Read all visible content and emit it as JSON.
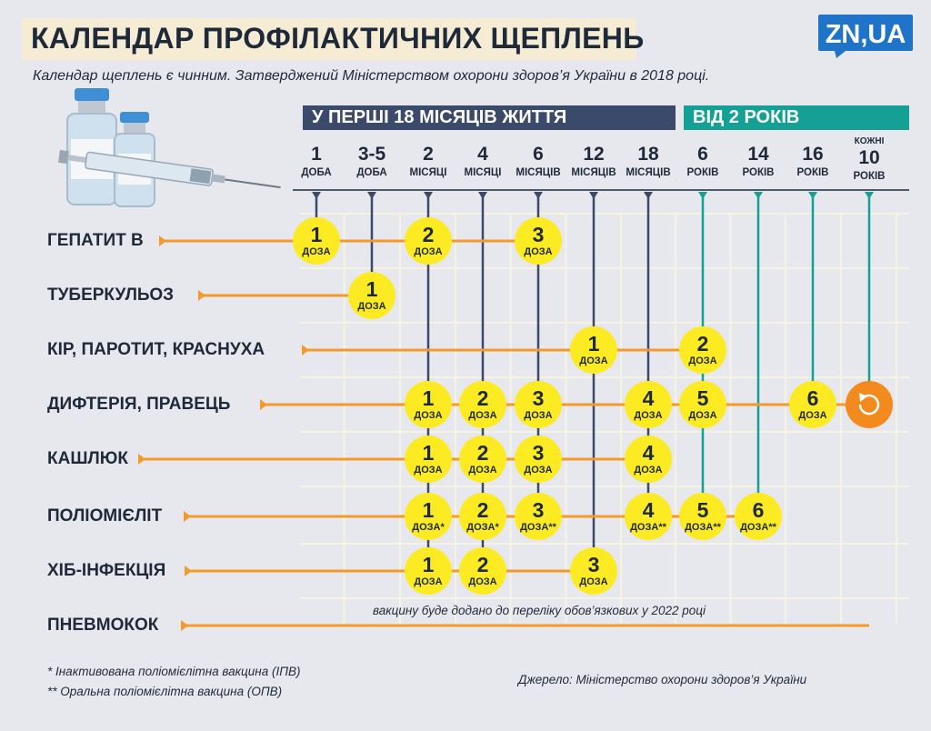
{
  "header": {
    "title": "КАЛЕНДАР ПРОФІЛАКТИЧНИХ ЩЕПЛЕНЬ",
    "subtitle": "Календар щеплень є чинним. Затверджений Міністерством охорони здоров’я України в 2018 році.",
    "logo_text": "ZN,UA"
  },
  "banners": {
    "infant": "У ПЕРШІ 18 МІСЯЦІВ ЖИТТЯ",
    "older": "ВІД  2 РОКІВ"
  },
  "ages": [
    {
      "num": "1",
      "unit": "ДОБА",
      "group": "infant"
    },
    {
      "num": "3-5",
      "unit": "ДОБА",
      "group": "infant"
    },
    {
      "num": "2",
      "unit": "МІСЯЦІ",
      "group": "infant"
    },
    {
      "num": "4",
      "unit": "МІСЯЦІ",
      "group": "infant"
    },
    {
      "num": "6",
      "unit": "МІСЯЦІВ",
      "group": "infant"
    },
    {
      "num": "12",
      "unit": "МІСЯЦІВ",
      "group": "infant"
    },
    {
      "num": "18",
      "unit": "МІСЯЦІВ",
      "group": "infant"
    },
    {
      "num": "6",
      "unit": "РОКІВ",
      "group": "older"
    },
    {
      "num": "14",
      "unit": "РОКІВ",
      "group": "older"
    },
    {
      "num": "16",
      "unit": "РОКІВ",
      "group": "older"
    },
    {
      "pre": "КОЖНІ",
      "num": "10",
      "unit": "РОКІВ",
      "group": "older"
    }
  ],
  "dose_label": "ДОЗА",
  "diseases": [
    {
      "name": "ГЕПАТИТ В",
      "doses": [
        {
          "age": 0,
          "n": "1"
        },
        {
          "age": 2,
          "n": "2"
        },
        {
          "age": 4,
          "n": "3"
        }
      ]
    },
    {
      "name": "ТУБЕРКУЛЬОЗ",
      "doses": [
        {
          "age": 1,
          "n": "1"
        }
      ]
    },
    {
      "name": "КІР, ПАРОТИТ,  КРАСНУХА",
      "doses": [
        {
          "age": 5,
          "n": "1"
        },
        {
          "age": 7,
          "n": "2"
        }
      ]
    },
    {
      "name": "ДИФТЕРІЯ, ПРАВЕЦЬ",
      "doses": [
        {
          "age": 2,
          "n": "1"
        },
        {
          "age": 3,
          "n": "2"
        },
        {
          "age": 4,
          "n": "3"
        },
        {
          "age": 6,
          "n": "4"
        },
        {
          "age": 7,
          "n": "5"
        },
        {
          "age": 9,
          "n": "6"
        },
        {
          "age": 10,
          "repeat": true
        }
      ]
    },
    {
      "name": "КАШЛЮК",
      "doses": [
        {
          "age": 2,
          "n": "1"
        },
        {
          "age": 3,
          "n": "2"
        },
        {
          "age": 4,
          "n": "3"
        },
        {
          "age": 6,
          "n": "4"
        }
      ]
    },
    {
      "name": "ПОЛІОМІЄЛІТ",
      "doses": [
        {
          "age": 2,
          "n": "1",
          "mark": "*"
        },
        {
          "age": 3,
          "n": "2",
          "mark": "*"
        },
        {
          "age": 4,
          "n": "3",
          "mark": "**"
        },
        {
          "age": 6,
          "n": "4",
          "mark": "**"
        },
        {
          "age": 7,
          "n": "5",
          "mark": "**"
        },
        {
          "age": 8,
          "n": "6",
          "mark": "**"
        }
      ]
    },
    {
      "name": "ХІБ-ІНФЕКЦІЯ",
      "doses": [
        {
          "age": 2,
          "n": "1"
        },
        {
          "age": 3,
          "n": "2"
        },
        {
          "age": 5,
          "n": "3"
        }
      ]
    },
    {
      "name": "ПНЕВМОКОК",
      "doses": []
    }
  ],
  "pneumococcus_note": "вакцину буде додано до переліку обов’язкових у 2022 році",
  "footnotes": [
    "* Інактивована  поліомієлітна вакцина (ІПВ)",
    "** Оральна поліомієлітна вакцина (ОПВ)"
  ],
  "source": "Джерело: Міністерство охорони здоров’я України",
  "colors": {
    "background": "#e7e8ed",
    "navy": "#3b4a6b",
    "teal": "#14a095",
    "orange": "#f39a2b",
    "yellow": "#fcea23",
    "repeat_circle": "#f28a1e",
    "grid": "#f7f3e4",
    "title_band": "#f5ecd3",
    "logo": "#1f73c9"
  },
  "icons": {
    "repeat": "repeat-arrow-icon",
    "vials": "vaccine-vials-syringe-icon",
    "logo": "zn-ua-logo"
  }
}
